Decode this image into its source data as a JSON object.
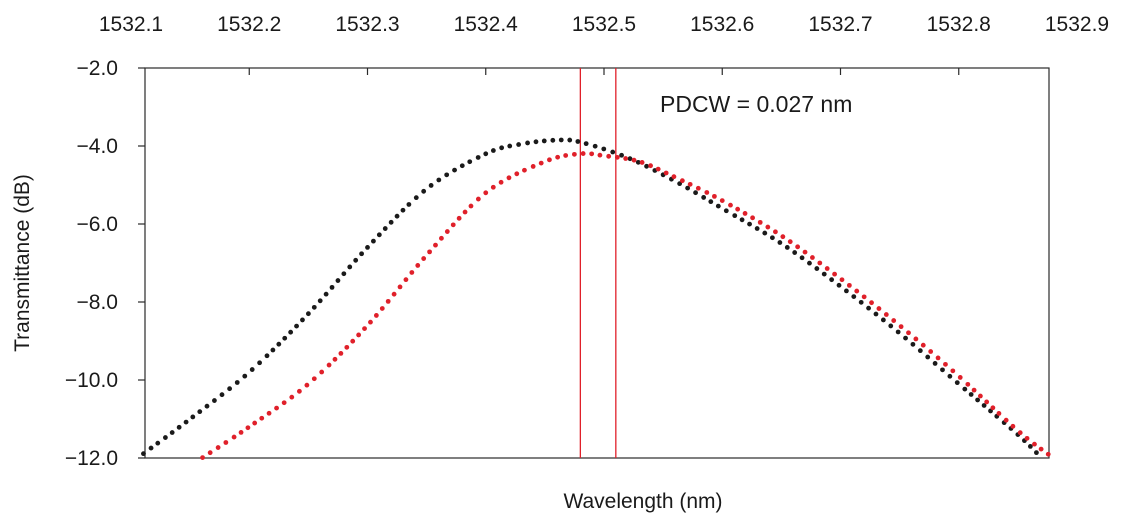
{
  "chart_data": {
    "type": "scatter",
    "title": "",
    "xlabel": "Wavelength (nm)",
    "ylabel": "Transmittance (dB)",
    "x_ticks": [
      "1532.1",
      "1532.2",
      "1532.3",
      "1532.4",
      "1532.5",
      "1532.6",
      "1532.7",
      "1532.8",
      "1532.9"
    ],
    "y_ticks": [
      "−2.0",
      "−4.0",
      "−6.0",
      "−8.0",
      "−10.0",
      "−12.0"
    ],
    "xlim": [
      1532.1,
      1532.9
    ],
    "ylim": [
      -12.0,
      -2.0
    ],
    "grid": false,
    "series": [
      {
        "color": "#1a1a1a",
        "style": "dotted",
        "x": [
          1532.11,
          1532.15,
          1532.2,
          1532.25,
          1532.3,
          1532.35,
          1532.4,
          1532.43,
          1532.46,
          1532.48,
          1532.52,
          1532.56,
          1532.6,
          1532.65,
          1532.7,
          1532.75,
          1532.8,
          1532.85,
          1532.87
        ],
        "y": [
          -11.9,
          -11.0,
          -9.8,
          -8.3,
          -6.6,
          -5.1,
          -4.2,
          -3.95,
          -3.85,
          -3.9,
          -4.3,
          -4.9,
          -5.6,
          -6.5,
          -7.6,
          -8.8,
          -10.1,
          -11.4,
          -12.0
        ]
      },
      {
        "color": "#e0202a",
        "style": "dotted",
        "x": [
          1532.16,
          1532.2,
          1532.25,
          1532.3,
          1532.35,
          1532.4,
          1532.45,
          1532.48,
          1532.5,
          1532.53,
          1532.56,
          1532.6,
          1532.65,
          1532.7,
          1532.75,
          1532.8,
          1532.85,
          1532.88
        ],
        "y": [
          -12.0,
          -11.2,
          -10.1,
          -8.6,
          -6.8,
          -5.2,
          -4.4,
          -4.2,
          -4.25,
          -4.4,
          -4.8,
          -5.4,
          -6.3,
          -7.4,
          -8.6,
          -9.9,
          -11.3,
          -12.0
        ]
      }
    ],
    "vlines": [
      {
        "x": 1532.48,
        "color": "#e0202a"
      },
      {
        "x": 1532.51,
        "color": "#e0202a"
      }
    ],
    "annotations": [
      {
        "text": "PDCW = 0.027 nm"
      }
    ]
  }
}
